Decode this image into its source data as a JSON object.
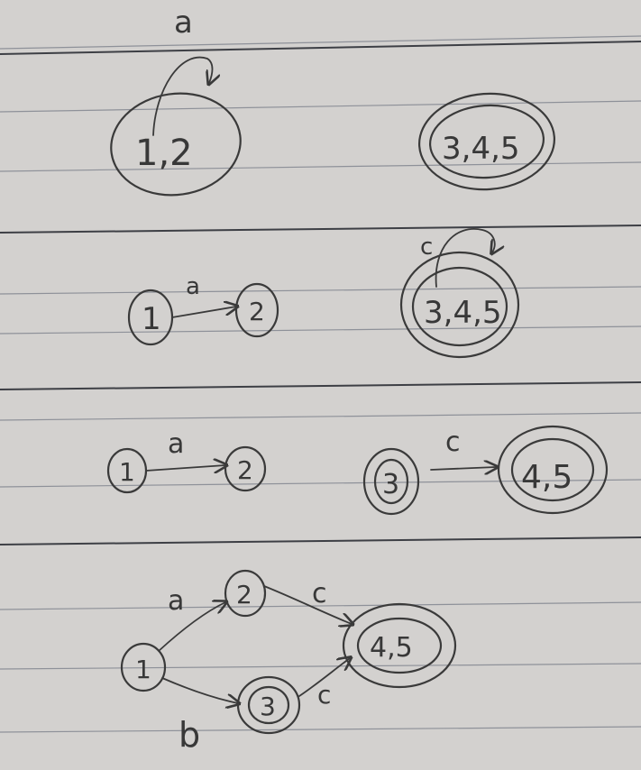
{
  "paper": {
    "background": "#d3d1cf",
    "ink": "#3a3a3a",
    "rule_color": "#8e9199"
  },
  "diagrams": {
    "d1": {
      "state_a": "1,2",
      "state_b": "3,4,5",
      "loop_label": "a"
    },
    "d2": {
      "node_1": "1",
      "node_2": "2",
      "edge_label": "a",
      "state_c": "3,4,5",
      "loop_label": "c"
    },
    "d3": {
      "node_1": "1",
      "node_2": "2",
      "edge_a": "a",
      "node_3": "3",
      "node_45": "4,5",
      "edge_c": "c"
    },
    "d4": {
      "node_1": "1",
      "node_2": "2",
      "node_3": "3",
      "node_45": "4,5",
      "edge_a": "a",
      "edge_b": "b",
      "edge_c_top": "c",
      "edge_c_bottom": "c"
    }
  }
}
